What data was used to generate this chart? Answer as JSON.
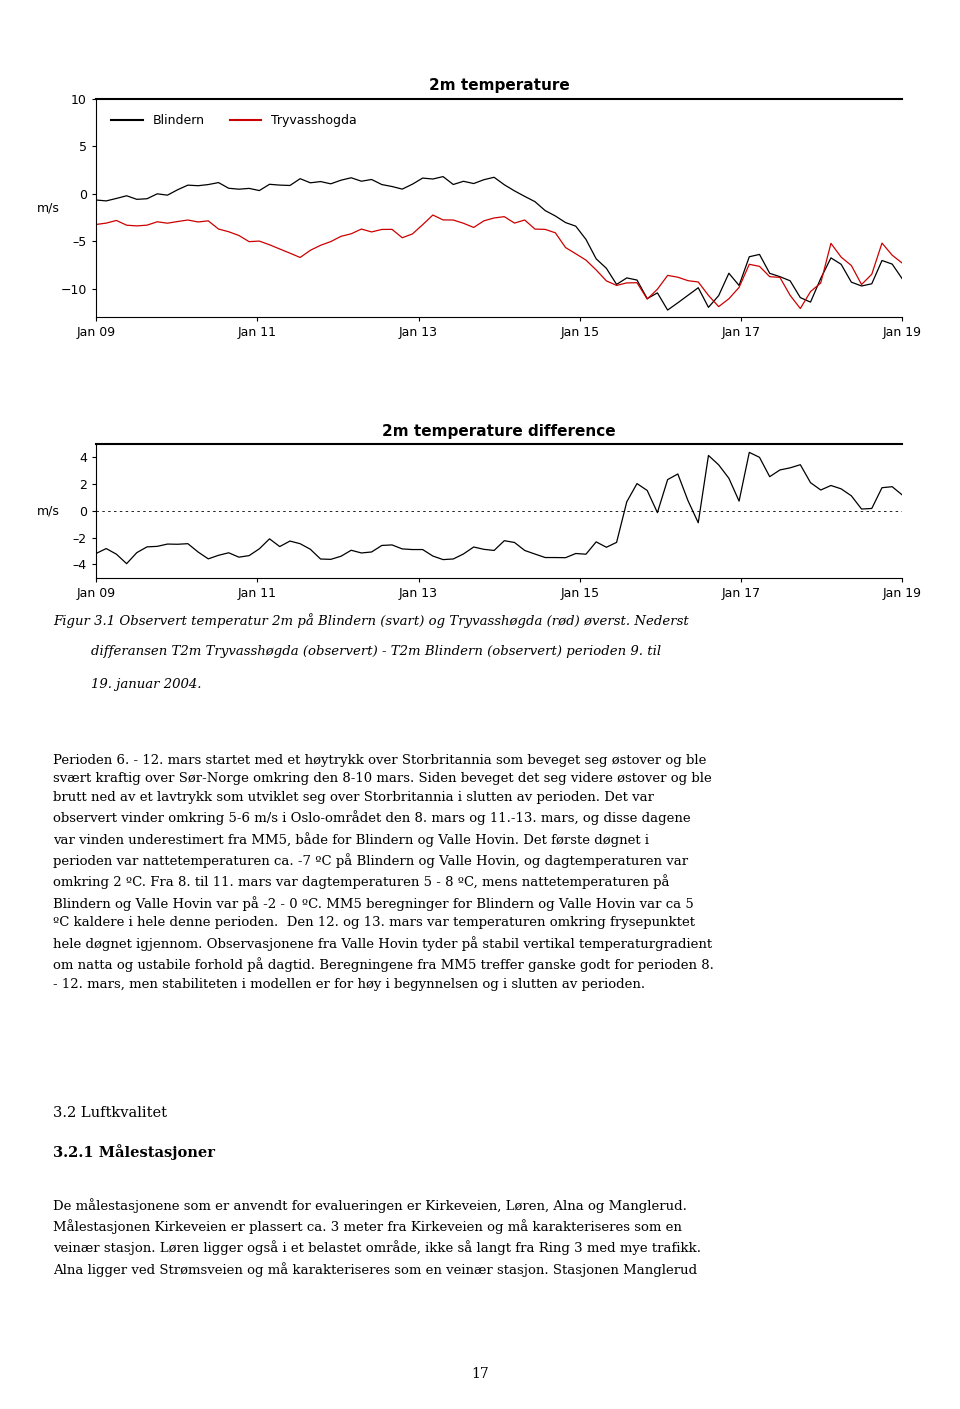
{
  "title1": "2m temperature",
  "title2": "2m temperature difference",
  "ylabel1": "m/s",
  "ylabel2": "m/s",
  "legend_blindern": "Blindern",
  "legend_tryvasshogda": "Tryvasshogda",
  "xtick_labels": [
    "Jan 09",
    "Jan 11",
    "Jan 13",
    "Jan 15",
    "Jan 17",
    "Jan 19"
  ],
  "ylim1": [
    -13,
    10
  ],
  "ylim2": [
    -5,
    5
  ],
  "yticks1": [
    10,
    5,
    0,
    -5,
    -10
  ],
  "yticks2": [
    4,
    2,
    0,
    -2,
    -4
  ],
  "page_number": "17",
  "background_color": "#ffffff",
  "line_color_blindern": "#000000",
  "line_color_tryvasshogda": "#cc0000",
  "line_color_diff": "#000000",
  "caption_line1": "Figur 3.1 Observert temperatur 2m på Blindern (svart) og Tryvasshøgda (rød) øverst. Nederst",
  "caption_line2": "differansen T2m Tryvasshøgda (observert) - T2m Blindern (observert) perioden 9. til",
  "caption_line3": "19. januar 2004.",
  "section_header": "3.2 Luftkvalitet",
  "subsection_header": "3.2.1 Målestasjoner",
  "body_para": "Perioden 6. - 12. mars startet med et høytrykk over Storbritannia som beveget seg østover og ble\nsvært kraftig over Sør-Norge omkring den 8-10 mars. Siden beveget det seg videre østover og ble\nbrutt ned av et lavtrykk som utviklet seg over Storbritannia i slutten av perioden. Det var\nobservert vinder omkring 5-6 m/s i Oslo-området den 8. mars og 11.-13. mars, og disse dagene\nvar vinden underestimert fra MM5, både for Blindern og Valle Hovin. Det første døgnet i\nperioden var nattetemperaturen ca. -7 ºC på Blindern og Valle Hovin, og dagtemperaturen var\nomkring 2 ºC. Fra 8. til 11. mars var dagtemperaturen 5 - 8 ºC, mens nattetemperaturen på\nBlindern og Valle Hovin var på -2 - 0 ºC. MM5 beregninger for Blindern og Valle Hovin var ca 5\nºC kaldere i hele denne perioden.  Den 12. og 13. mars var temperaturen omkring frysepunktet\nhele døgnet igjennom. Observasjonene fra Valle Hovin tyder på stabil vertikal temperaturgradient\nom natta og ustabile forhold på dagtid. Beregningene fra MM5 treffer ganske godt for perioden 8.\n- 12. mars, men stabiliteten i modellen er for høy i begynnelsen og i slutten av perioden.",
  "section_body": "De målestasjonene som er anvendt for evalueringen er Kirkeveien, Løren, Alna og Manglerud.\nMålestasjonen Kirkeveien er plassert ca. 3 meter fra Kirkeveien og må karakteriseres som en\nveinær stasjon. Løren ligger også i et belastet område, ikke så langt fra Ring 3 med mye trafikk.\nAlna ligger ved Strømsveien og må karakteriseres som en veinær stasjon. Stasjonen Manglerud"
}
